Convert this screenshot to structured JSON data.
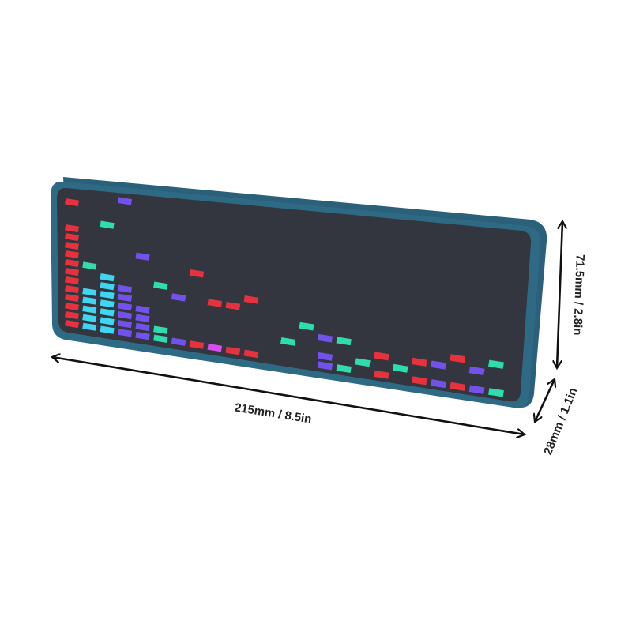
{
  "colors": {
    "red": "#e5323d",
    "cyan": "#3fd6f2",
    "purple": "#7352ec",
    "green": "#2fdcae",
    "magenta": "#d64df2",
    "body": "#2f6a84",
    "screen": "#33363f"
  },
  "dimensions": {
    "width_label": "215mm / 8.5in",
    "height_label": "71.5mm / 2.8in",
    "depth_label": "28mm / 1.1in"
  },
  "spectrum": [
    {
      "bar": 12,
      "bar_color": "red",
      "peak": 14,
      "peak_color": "red"
    },
    {
      "bar": 5,
      "bar_color": "cyan",
      "peak": 7,
      "peak_color": "green"
    },
    {
      "bar": 7,
      "bar_color": "cyan",
      "peak": 12,
      "peak_color": "green"
    },
    {
      "bar": 6,
      "bar_color": "purple",
      "peak": 15,
      "peak_color": "purple"
    },
    {
      "bar": 4,
      "bar_color": "purple",
      "peak": 9,
      "peak_color": "purple"
    },
    {
      "bar": 2,
      "bar_color": "green",
      "peak": 6,
      "peak_color": "green"
    },
    {
      "bar": 1,
      "bar_color": "purple",
      "peak": 5,
      "peak_color": "purple"
    },
    {
      "bar": 1,
      "bar_color": "red",
      "peak": 8,
      "peak_color": "red"
    },
    {
      "bar": 1,
      "bar_color": "magenta",
      "peak": 5,
      "peak_color": "red"
    },
    {
      "bar": 1,
      "bar_color": "red",
      "peak": 5,
      "peak_color": "red"
    },
    {
      "bar": 1,
      "bar_color": "red",
      "peak": 6,
      "peak_color": "red"
    },
    {
      "bar": 0,
      "bar_color": "red",
      "peak": -1,
      "peak_color": "red"
    },
    {
      "bar": 0,
      "bar_color": "green",
      "peak": 2,
      "peak_color": "green"
    },
    {
      "bar": 0,
      "bar_color": "green",
      "peak": 4,
      "peak_color": "green"
    },
    {
      "bar": 2,
      "bar_color": "purple",
      "peak": 3,
      "peak_color": "purple"
    },
    {
      "bar": 1,
      "bar_color": "green",
      "peak": 3,
      "peak_color": "green"
    },
    {
      "bar": 0,
      "bar_color": "green",
      "peak": 1,
      "peak_color": "green"
    },
    {
      "bar": 1,
      "bar_color": "red",
      "peak": 2,
      "peak_color": "red"
    },
    {
      "bar": 0,
      "bar_color": "green",
      "peak": 1,
      "peak_color": "green"
    },
    {
      "bar": 1,
      "bar_color": "red",
      "peak": 2,
      "peak_color": "red"
    },
    {
      "bar": 1,
      "bar_color": "purple",
      "peak": 2,
      "peak_color": "purple"
    },
    {
      "bar": 1,
      "bar_color": "red",
      "peak": 3,
      "peak_color": "red"
    },
    {
      "bar": 1,
      "bar_color": "purple",
      "peak": 2,
      "peak_color": "purple"
    },
    {
      "bar": 1,
      "bar_color": "green",
      "peak": 3,
      "peak_color": "green"
    }
  ]
}
